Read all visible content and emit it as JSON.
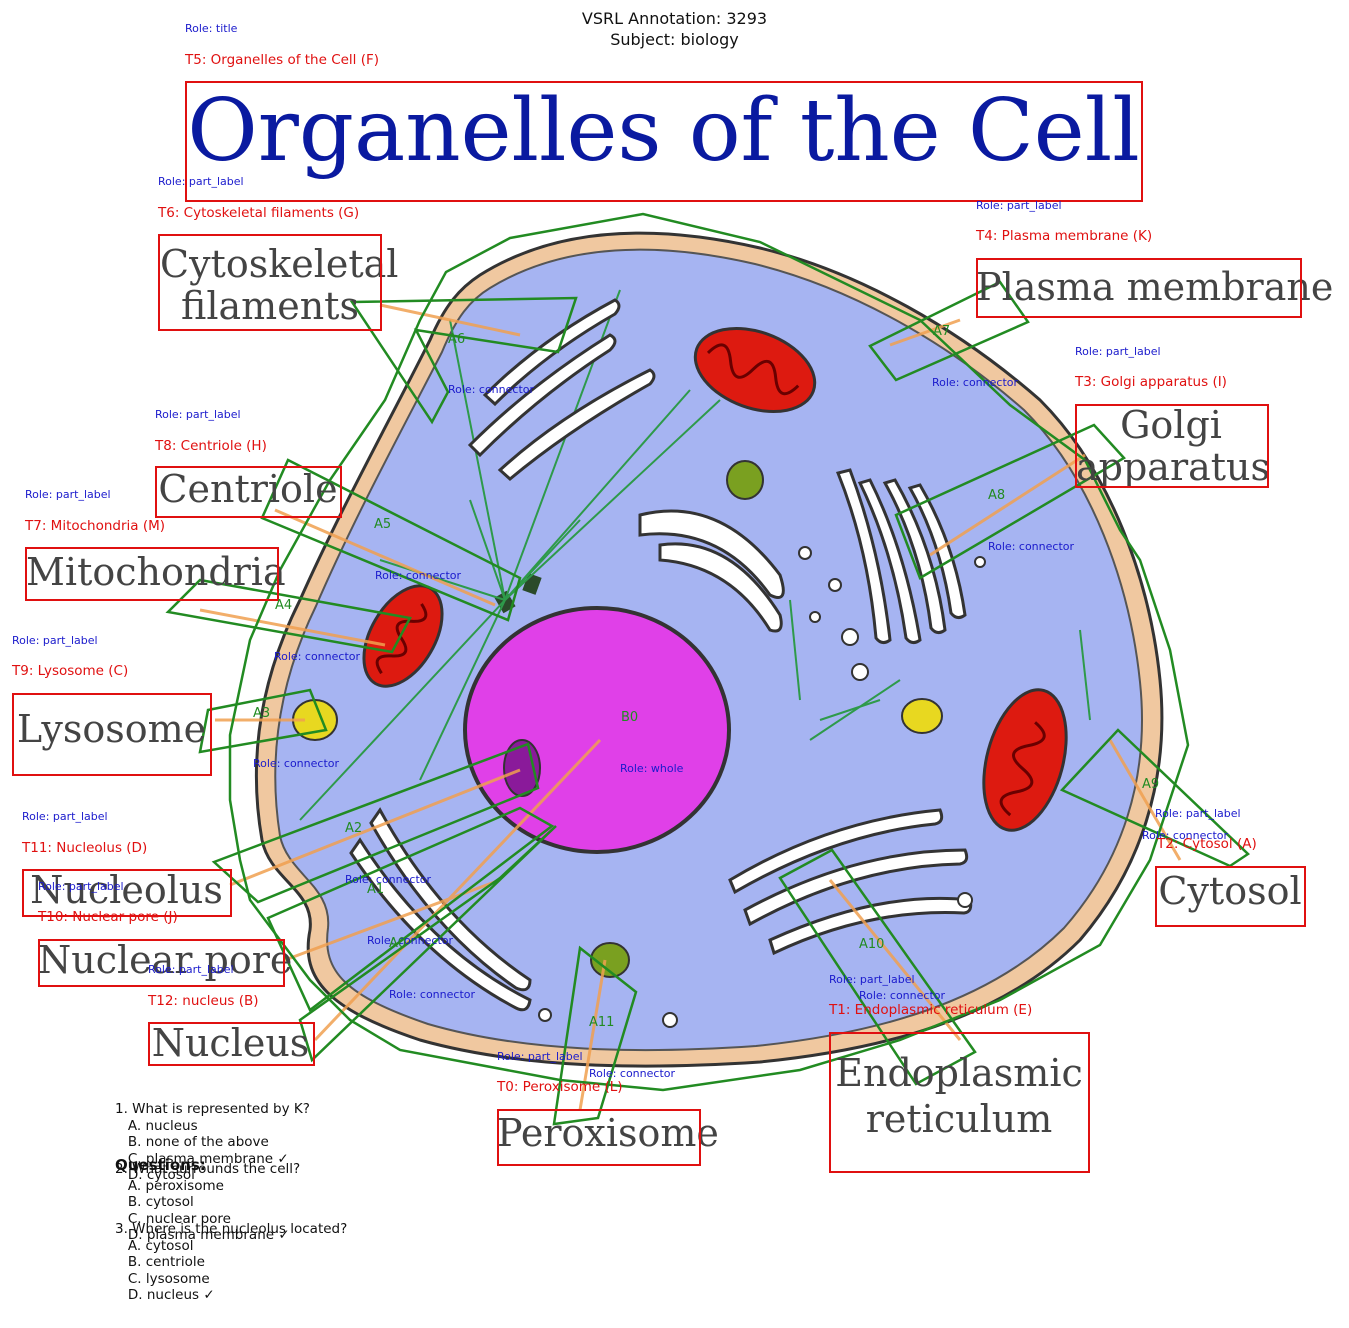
{
  "header": {
    "line1": "VSRL Annotation: 3293",
    "line2": "Subject: biology"
  },
  "diagram_text": {
    "title": "Organelles of the Cell",
    "cytoskeletal": "Cytoskeletal filaments",
    "plasma_membrane": "Plasma membrane",
    "golgi": "Golgi apparatus",
    "centriole": "Centriole",
    "mitochondria": "Mitochondria",
    "lysosome": "Lysosome",
    "nucleolus": "Nucleolus",
    "nuclear_pore": "Nuclear pore",
    "nucleus": "Nucleus",
    "peroxisome": "Peroxisome",
    "er": "Endoplasmic reticulum",
    "cytosol": "Cytosol"
  },
  "annotations": {
    "roles": {
      "title": "Role: title",
      "part_label": "Role: part_label",
      "connector": "Role: connector",
      "whole": "Role: whole"
    },
    "text_labels": {
      "t0": "T0: Peroxisome (L)",
      "t1": "T1: Endoplasmic reticulum (E)",
      "t2": "T2: Cytosol (A)",
      "t3": "T3: Golgi apparatus (I)",
      "t4": "T4: Plasma membrane (K)",
      "t5": "T5: Organelles of the Cell (F)",
      "t6": "T6: Cytoskeletal filaments (G)",
      "t7": "T7: Mitochondria (M)",
      "t8": "T8: Centriole (H)",
      "t9": "T9: Lysosome (C)",
      "t10": "T10: Nuclear pore (J)",
      "t11": "T11: Nucleolus (D)",
      "t12": "T12: nucleus (B)"
    },
    "arrow_labels": {
      "a0": "A0",
      "a1": "A1",
      "a2": "A2",
      "a3": "A3",
      "a4": "A4",
      "a5": "A5",
      "a6": "A6",
      "a7": "A7",
      "a8": "A8",
      "a9": "A9",
      "a10": "A10",
      "a11": "A11"
    },
    "blob_label": "B0"
  },
  "questions": {
    "heading": "Questions:",
    "q1": "1. What is represented by K?\n   A. nucleus\n   B. none of the above\n   C. plasma membrane ✓\n   D. cytosol",
    "q2": "2. What surrounds the cell?\n   A. peroxisome\n   B. cytosol\n   C. nuclear pore\n   D. plasma membrane ✓",
    "q3": "3. Where is the nucleolus located?\n   A. cytosol\n   B. centriole\n   C. lysosome\n   D. nucleus ✓"
  },
  "colors": {
    "annotation_box": "#e01010",
    "role_text": "#1a1acc",
    "arrow_polygon": "#228b22",
    "cytoplasm": "#a6b4f2",
    "nucleus": "#e040e8",
    "mitochondria": "#dd1a10"
  }
}
